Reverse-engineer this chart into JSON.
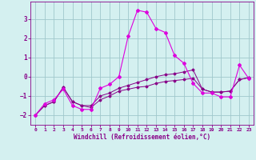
{
  "xlabel": "Windchill (Refroidissement éolien,°C)",
  "bg_color": "#d4f0f0",
  "grid_color": "#a0c8cc",
  "line_color_bright": "#dd00dd",
  "line_color_dark": "#880088",
  "xlim": [
    -0.5,
    23.5
  ],
  "ylim": [
    -2.5,
    3.9
  ],
  "yticks": [
    -2,
    -1,
    0,
    1,
    2,
    3
  ],
  "xticks": [
    0,
    1,
    2,
    3,
    4,
    5,
    6,
    7,
    8,
    9,
    10,
    11,
    12,
    13,
    14,
    15,
    16,
    17,
    18,
    19,
    20,
    21,
    22,
    23
  ],
  "series1_x": [
    0,
    1,
    2,
    3,
    4,
    5,
    6,
    7,
    8,
    9,
    10,
    11,
    12,
    13,
    14,
    15,
    16,
    17,
    18,
    19,
    20,
    21,
    22,
    23
  ],
  "series1_y": [
    -2.0,
    -1.4,
    -1.2,
    -0.65,
    -1.5,
    -1.7,
    -1.7,
    -0.6,
    -0.4,
    0.0,
    2.1,
    3.45,
    3.35,
    2.5,
    2.3,
    1.1,
    0.7,
    -0.35,
    -0.85,
    -0.85,
    -1.05,
    -1.05,
    0.6,
    -0.1
  ],
  "series2_x": [
    0,
    1,
    2,
    3,
    4,
    5,
    6,
    7,
    8,
    9,
    10,
    11,
    12,
    13,
    14,
    15,
    16,
    17,
    18,
    19,
    20,
    21,
    22,
    23
  ],
  "series2_y": [
    -2.0,
    -1.5,
    -1.3,
    -0.55,
    -1.3,
    -1.5,
    -1.5,
    -1.0,
    -0.85,
    -0.6,
    -0.45,
    -0.3,
    -0.15,
    0.0,
    0.1,
    0.15,
    0.25,
    0.35,
    -0.65,
    -0.8,
    -0.8,
    -0.75,
    -0.15,
    -0.05
  ],
  "series3_x": [
    0,
    1,
    2,
    3,
    4,
    5,
    6,
    7,
    8,
    9,
    10,
    11,
    12,
    13,
    14,
    15,
    16,
    17,
    18,
    19,
    20,
    21,
    22,
    23
  ],
  "series3_y": [
    -2.0,
    -1.5,
    -1.3,
    -0.55,
    -1.3,
    -1.5,
    -1.6,
    -1.2,
    -1.0,
    -0.75,
    -0.65,
    -0.55,
    -0.5,
    -0.35,
    -0.25,
    -0.2,
    -0.15,
    -0.08,
    -0.65,
    -0.8,
    -0.8,
    -0.75,
    -0.15,
    -0.05
  ]
}
